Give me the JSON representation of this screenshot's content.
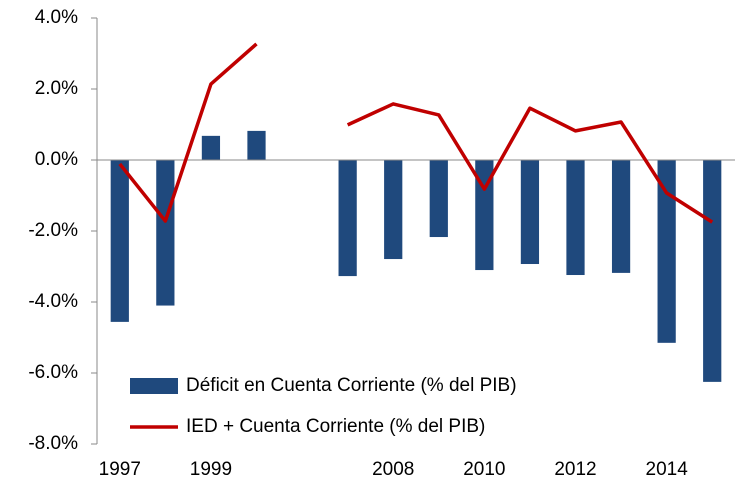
{
  "chart_data": {
    "type": "bar_line",
    "categories": [
      "1997",
      null,
      "1999",
      null,
      null,
      null,
      "2008",
      null,
      "2010",
      null,
      "2012",
      null,
      "2014",
      null
    ],
    "series": [
      {
        "name": "Déficit en Cuenta Corriente (% del PIB)",
        "type": "bar",
        "color": "#1f497d",
        "values": [
          -4.56,
          -4.1,
          0.68,
          0.82,
          null,
          -3.27,
          -2.79,
          -2.17,
          -3.1,
          -2.93,
          -3.24,
          -3.18,
          -5.15,
          -6.25
        ]
      },
      {
        "name": "IED + Cuenta Corriente (% del PIB)",
        "type": "line",
        "color": "#c00000",
        "values": [
          -0.11,
          -1.72,
          2.14,
          3.27,
          null,
          0.99,
          1.58,
          1.27,
          -0.82,
          1.46,
          0.82,
          1.07,
          -0.93,
          -1.75
        ]
      }
    ],
    "ylim": [
      -8,
      4
    ],
    "yticks": [
      {
        "value": -8,
        "label": "-8.0%"
      },
      {
        "value": -6,
        "label": "-6.0%"
      },
      {
        "value": -4,
        "label": "-4.0%"
      },
      {
        "value": -2,
        "label": "-2.0%"
      },
      {
        "value": 0,
        "label": "0.0%"
      },
      {
        "value": 2,
        "label": "2.0%"
      },
      {
        "value": 4,
        "label": "4.0%"
      }
    ],
    "legend": "lower-left"
  }
}
